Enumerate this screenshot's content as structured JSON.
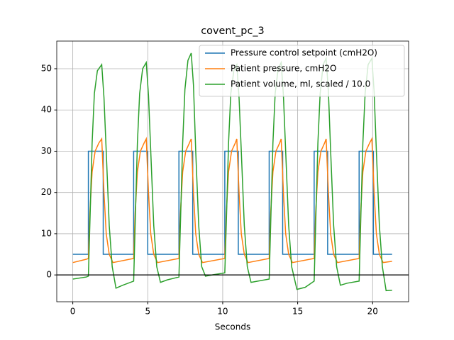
{
  "chart_data": {
    "type": "line",
    "title": "covent_pc_3",
    "x_label": "Seconds",
    "xlim": [
      -1.07,
      22.4
    ],
    "ylim": [
      -6.5,
      56.7
    ],
    "xticks": [
      0,
      5,
      10,
      15,
      20
    ],
    "yticks": [
      0,
      10,
      20,
      30,
      40,
      50
    ],
    "grid": true,
    "hline": 0,
    "legend": "upper right",
    "series": [
      {
        "name": "Pressure control setpoint (cmH2O)",
        "color": "#1f77b4",
        "x": [
          0,
          1.04,
          1.04,
          2.03,
          2.03,
          4.06,
          4.06,
          5.0,
          5.0,
          7.08,
          7.08,
          8.0,
          8.0,
          10.14,
          10.14,
          11.04,
          11.04,
          13.1,
          13.1,
          14.0,
          14.0,
          16.1,
          16.1,
          17.0,
          17.0,
          19.1,
          19.1,
          20.05,
          20.05,
          21.3
        ],
        "values": [
          5,
          5,
          30,
          30,
          5,
          5,
          30,
          30,
          5,
          5,
          30,
          30,
          5,
          5,
          30,
          30,
          5,
          5,
          30,
          30,
          5,
          5,
          30,
          30,
          5,
          5,
          30,
          30,
          5,
          5
        ]
      },
      {
        "name": "Patient pressure, cmH2O",
        "color": "#ff7f0e",
        "x": [
          0,
          0.9,
          1.04,
          1.14,
          1.29,
          1.49,
          1.74,
          1.93,
          2.08,
          2.23,
          2.43,
          2.68,
          4.06,
          4.16,
          4.31,
          4.51,
          4.76,
          4.9,
          5.05,
          5.2,
          5.4,
          5.65,
          7.08,
          7.18,
          7.33,
          7.53,
          7.78,
          7.9,
          8.05,
          8.2,
          8.4,
          8.65,
          10.14,
          10.24,
          10.39,
          10.59,
          10.84,
          10.94,
          11.09,
          11.24,
          11.44,
          11.69,
          13.1,
          13.2,
          13.35,
          13.55,
          13.8,
          13.9,
          14.05,
          14.2,
          14.4,
          14.65,
          16.1,
          16.2,
          16.35,
          16.55,
          16.8,
          16.9,
          17.05,
          17.2,
          17.4,
          17.65,
          19.1,
          19.2,
          19.35,
          19.55,
          19.8,
          19.95,
          20.1,
          20.25,
          20.45,
          20.7,
          21.3
        ],
        "values": [
          3,
          3.8,
          4,
          15,
          25,
          30,
          32,
          33,
          20,
          10,
          5,
          3,
          4,
          15,
          25,
          30,
          32,
          33,
          20,
          10,
          5,
          3,
          4,
          15,
          25,
          30,
          32,
          33,
          20,
          10,
          5,
          3,
          4,
          15,
          25,
          30,
          32,
          33,
          20,
          10,
          5,
          3,
          4,
          15,
          25,
          30,
          32,
          33,
          20,
          10,
          5,
          3,
          4,
          15,
          25,
          30,
          32,
          33,
          20,
          10,
          5,
          3,
          4,
          15,
          25,
          30,
          32,
          33,
          20,
          10,
          5,
          3,
          3.3
        ]
      },
      {
        "name": "Patient volume, ml, scaled / 10.0",
        "color": "#2ca02c",
        "x": [
          0,
          0.9,
          1.04,
          1.16,
          1.29,
          1.44,
          1.64,
          1.93,
          2.08,
          2.23,
          2.43,
          2.63,
          2.88,
          3.33,
          4.06,
          4.18,
          4.31,
          4.46,
          4.66,
          4.9,
          5.05,
          5.2,
          5.4,
          5.6,
          5.85,
          6.3,
          7.08,
          7.2,
          7.33,
          7.48,
          7.68,
          7.9,
          8.05,
          8.2,
          8.4,
          8.6,
          8.85,
          9.3,
          10.14,
          10.26,
          10.39,
          10.54,
          10.74,
          10.94,
          11.09,
          11.24,
          11.44,
          11.64,
          11.89,
          12.34,
          13.1,
          13.22,
          13.35,
          13.5,
          13.7,
          13.9,
          14.05,
          14.2,
          14.4,
          14.6,
          14.95,
          15.5,
          16.1,
          16.22,
          16.35,
          16.5,
          16.7,
          16.9,
          17.05,
          17.2,
          17.4,
          17.6,
          17.85,
          18.3,
          19.1,
          19.22,
          19.35,
          19.5,
          19.7,
          19.95,
          20.1,
          20.25,
          20.45,
          20.65,
          20.9,
          21.3
        ],
        "values": [
          -1,
          -0.5,
          -0.3,
          15,
          32,
          44,
          49.5,
          51,
          43,
          30,
          12,
          2,
          -3.2,
          -2.5,
          -1.5,
          15,
          32,
          44,
          50,
          51.5,
          43.5,
          30,
          12,
          2,
          -1.8,
          -1.2,
          -0.5,
          15,
          32,
          45,
          52,
          53.8,
          46,
          30,
          12,
          2,
          -0.3,
          0,
          0.5,
          15,
          32,
          44,
          49.5,
          51,
          43,
          30,
          12,
          2,
          -1.8,
          -1.5,
          -1,
          15,
          32,
          44,
          50,
          51.5,
          43.5,
          30,
          12,
          2,
          -3.5,
          -3,
          -1.5,
          15,
          32,
          44,
          51,
          52.5,
          44.5,
          30,
          12,
          2,
          -2.5,
          -2,
          -1.5,
          15,
          32,
          44,
          51,
          52.5,
          44.5,
          30,
          12,
          2,
          -3.8,
          -3.7
        ]
      }
    ]
  }
}
